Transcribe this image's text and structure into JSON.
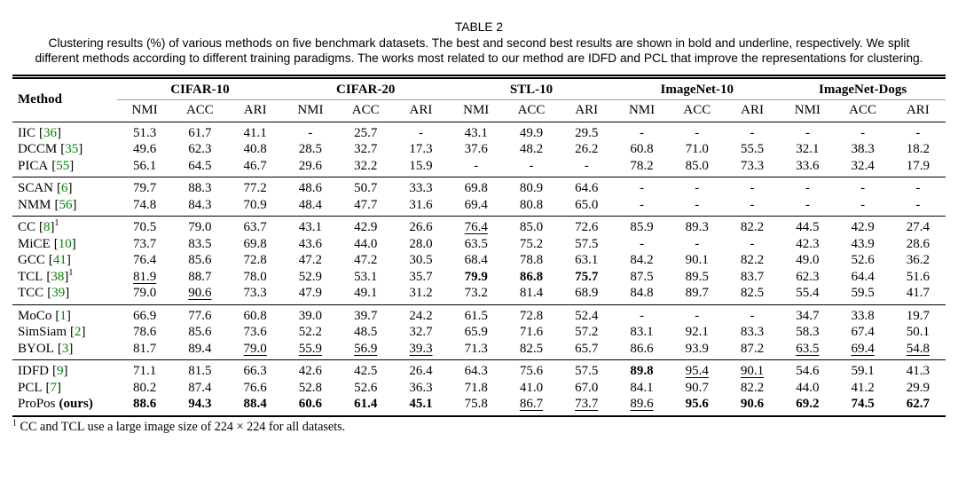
{
  "caption": {
    "label": "TABLE 2",
    "text": "Clustering results (%) of various methods on five benchmark datasets. The best and second best results are shown in bold and underline, respectively. We split different methods according to different training paradigms. The works most related to our method are IDFD and PCL that improve the representations for clustering."
  },
  "table": {
    "method_header": "Method",
    "dataset_headers": [
      "CIFAR-10",
      "CIFAR-20",
      "STL-10",
      "ImageNet-10",
      "ImageNet-Dogs"
    ],
    "metric_headers": [
      "NMI",
      "ACC",
      "ARI"
    ],
    "citation_brackets": [
      "[",
      "]"
    ],
    "groups": [
      {
        "rows": [
          {
            "name": "IIC",
            "ref": "36",
            "sup": "",
            "values": [
              "51.3",
              "61.7",
              "41.1",
              "-",
              "25.7",
              "-",
              "43.1",
              "49.9",
              "29.5",
              "-",
              "-",
              "-",
              "-",
              "-",
              "-"
            ],
            "styles": [
              "n",
              "n",
              "n",
              "n",
              "n",
              "n",
              "n",
              "n",
              "n",
              "n",
              "n",
              "n",
              "n",
              "n",
              "n"
            ]
          },
          {
            "name": "DCCM",
            "ref": "35",
            "sup": "",
            "values": [
              "49.6",
              "62.3",
              "40.8",
              "28.5",
              "32.7",
              "17.3",
              "37.6",
              "48.2",
              "26.2",
              "60.8",
              "71.0",
              "55.5",
              "32.1",
              "38.3",
              "18.2"
            ],
            "styles": [
              "n",
              "n",
              "n",
              "n",
              "n",
              "n",
              "n",
              "n",
              "n",
              "n",
              "n",
              "n",
              "n",
              "n",
              "n"
            ]
          },
          {
            "name": "PICA",
            "ref": "55",
            "sup": "",
            "values": [
              "56.1",
              "64.5",
              "46.7",
              "29.6",
              "32.2",
              "15.9",
              "-",
              "-",
              "-",
              "78.2",
              "85.0",
              "73.3",
              "33.6",
              "32.4",
              "17.9"
            ],
            "styles": [
              "n",
              "n",
              "n",
              "n",
              "n",
              "n",
              "n",
              "n",
              "n",
              "n",
              "n",
              "n",
              "n",
              "n",
              "n"
            ]
          }
        ]
      },
      {
        "rows": [
          {
            "name": "SCAN",
            "ref": "6",
            "sup": "",
            "values": [
              "79.7",
              "88.3",
              "77.2",
              "48.6",
              "50.7",
              "33.3",
              "69.8",
              "80.9",
              "64.6",
              "-",
              "-",
              "-",
              "-",
              "-",
              "-"
            ],
            "styles": [
              "n",
              "n",
              "n",
              "n",
              "n",
              "n",
              "n",
              "n",
              "n",
              "n",
              "n",
              "n",
              "n",
              "n",
              "n"
            ]
          },
          {
            "name": "NMM",
            "ref": "56",
            "sup": "",
            "values": [
              "74.8",
              "84.3",
              "70.9",
              "48.4",
              "47.7",
              "31.6",
              "69.4",
              "80.8",
              "65.0",
              "-",
              "-",
              "-",
              "-",
              "-",
              "-"
            ],
            "styles": [
              "n",
              "n",
              "n",
              "n",
              "n",
              "n",
              "n",
              "n",
              "n",
              "n",
              "n",
              "n",
              "n",
              "n",
              "n"
            ]
          }
        ]
      },
      {
        "rows": [
          {
            "name": "CC",
            "ref": "8",
            "sup": "1",
            "values": [
              "70.5",
              "79.0",
              "63.7",
              "43.1",
              "42.9",
              "26.6",
              "76.4",
              "85.0",
              "72.6",
              "85.9",
              "89.3",
              "82.2",
              "44.5",
              "42.9",
              "27.4"
            ],
            "styles": [
              "n",
              "n",
              "n",
              "n",
              "n",
              "n",
              "u",
              "n",
              "n",
              "n",
              "n",
              "n",
              "n",
              "n",
              "n"
            ]
          },
          {
            "name": "MiCE",
            "ref": "10",
            "sup": "",
            "values": [
              "73.7",
              "83.5",
              "69.8",
              "43.6",
              "44.0",
              "28.0",
              "63.5",
              "75.2",
              "57.5",
              "-",
              "-",
              "-",
              "42.3",
              "43.9",
              "28.6"
            ],
            "styles": [
              "n",
              "n",
              "n",
              "n",
              "n",
              "n",
              "n",
              "n",
              "n",
              "n",
              "n",
              "n",
              "n",
              "n",
              "n"
            ]
          },
          {
            "name": "GCC",
            "ref": "41",
            "sup": "",
            "values": [
              "76.4",
              "85.6",
              "72.8",
              "47.2",
              "47.2",
              "30.5",
              "68.4",
              "78.8",
              "63.1",
              "84.2",
              "90.1",
              "82.2",
              "49.0",
              "52.6",
              "36.2"
            ],
            "styles": [
              "n",
              "n",
              "n",
              "n",
              "n",
              "n",
              "n",
              "n",
              "n",
              "n",
              "n",
              "n",
              "n",
              "n",
              "n"
            ]
          },
          {
            "name": "TCL",
            "ref": "38",
            "sup": "1",
            "values": [
              "81.9",
              "88.7",
              "78.0",
              "52.9",
              "53.1",
              "35.7",
              "79.9",
              "86.8",
              "75.7",
              "87.5",
              "89.5",
              "83.7",
              "62.3",
              "64.4",
              "51.6"
            ],
            "styles": [
              "u",
              "n",
              "n",
              "n",
              "n",
              "n",
              "b",
              "b",
              "b",
              "n",
              "n",
              "n",
              "n",
              "n",
              "n"
            ]
          },
          {
            "name": "TCC",
            "ref": "39",
            "sup": "",
            "values": [
              "79.0",
              "90.6",
              "73.3",
              "47.9",
              "49.1",
              "31.2",
              "73.2",
              "81.4",
              "68.9",
              "84.8",
              "89.7",
              "82.5",
              "55.4",
              "59.5",
              "41.7"
            ],
            "styles": [
              "n",
              "u",
              "n",
              "n",
              "n",
              "n",
              "n",
              "n",
              "n",
              "n",
              "n",
              "n",
              "n",
              "n",
              "n"
            ]
          }
        ]
      },
      {
        "rows": [
          {
            "name": "MoCo",
            "ref": "1",
            "sup": "",
            "values": [
              "66.9",
              "77.6",
              "60.8",
              "39.0",
              "39.7",
              "24.2",
              "61.5",
              "72.8",
              "52.4",
              "-",
              "-",
              "-",
              "34.7",
              "33.8",
              "19.7"
            ],
            "styles": [
              "n",
              "n",
              "n",
              "n",
              "n",
              "n",
              "n",
              "n",
              "n",
              "n",
              "n",
              "n",
              "n",
              "n",
              "n"
            ]
          },
          {
            "name": "SimSiam",
            "ref": "2",
            "sup": "",
            "values": [
              "78.6",
              "85.6",
              "73.6",
              "52.2",
              "48.5",
              "32.7",
              "65.9",
              "71.6",
              "57.2",
              "83.1",
              "92.1",
              "83.3",
              "58.3",
              "67.4",
              "50.1"
            ],
            "styles": [
              "n",
              "n",
              "n",
              "n",
              "n",
              "n",
              "n",
              "n",
              "n",
              "n",
              "n",
              "n",
              "n",
              "n",
              "n"
            ]
          },
          {
            "name": "BYOL",
            "ref": "3",
            "sup": "",
            "values": [
              "81.7",
              "89.4",
              "79.0",
              "55.9",
              "56.9",
              "39.3",
              "71.3",
              "82.5",
              "65.7",
              "86.6",
              "93.9",
              "87.2",
              "63.5",
              "69.4",
              "54.8"
            ],
            "styles": [
              "n",
              "n",
              "u",
              "u",
              "u",
              "u",
              "n",
              "n",
              "n",
              "n",
              "n",
              "n",
              "u",
              "u",
              "u"
            ]
          }
        ]
      },
      {
        "rows": [
          {
            "name": "IDFD",
            "ref": "9",
            "sup": "",
            "values": [
              "71.1",
              "81.5",
              "66.3",
              "42.6",
              "42.5",
              "26.4",
              "64.3",
              "75.6",
              "57.5",
              "89.8",
              "95.4",
              "90.1",
              "54.6",
              "59.1",
              "41.3"
            ],
            "styles": [
              "n",
              "n",
              "n",
              "n",
              "n",
              "n",
              "n",
              "n",
              "n",
              "b",
              "u",
              "u",
              "n",
              "n",
              "n"
            ]
          },
          {
            "name": "PCL",
            "ref": "7",
            "sup": "",
            "values": [
              "80.2",
              "87.4",
              "76.6",
              "52.8",
              "52.6",
              "36.3",
              "71.8",
              "41.0",
              "67.0",
              "84.1",
              "90.7",
              "82.2",
              "44.0",
              "41.2",
              "29.9"
            ],
            "styles": [
              "n",
              "n",
              "n",
              "n",
              "n",
              "n",
              "n",
              "n",
              "n",
              "n",
              "n",
              "n",
              "n",
              "n",
              "n"
            ]
          },
          {
            "name": "ProPos",
            "ref": "",
            "sup": "",
            "bold_suffix": "(ours)",
            "values": [
              "88.6",
              "94.3",
              "88.4",
              "60.6",
              "61.4",
              "45.1",
              "75.8",
              "86.7",
              "73.7",
              "89.6",
              "95.6",
              "90.6",
              "69.2",
              "74.5",
              "62.7"
            ],
            "styles": [
              "b",
              "b",
              "b",
              "b",
              "b",
              "b",
              "n",
              "u",
              "u",
              "u",
              "b",
              "b",
              "b",
              "b",
              "b"
            ]
          }
        ]
      }
    ]
  },
  "footnote": {
    "marker": "1",
    "text": "CC and TCL use a large image size of 224 × 224 for all datasets."
  },
  "colors": {
    "citation_green": "#008000"
  }
}
